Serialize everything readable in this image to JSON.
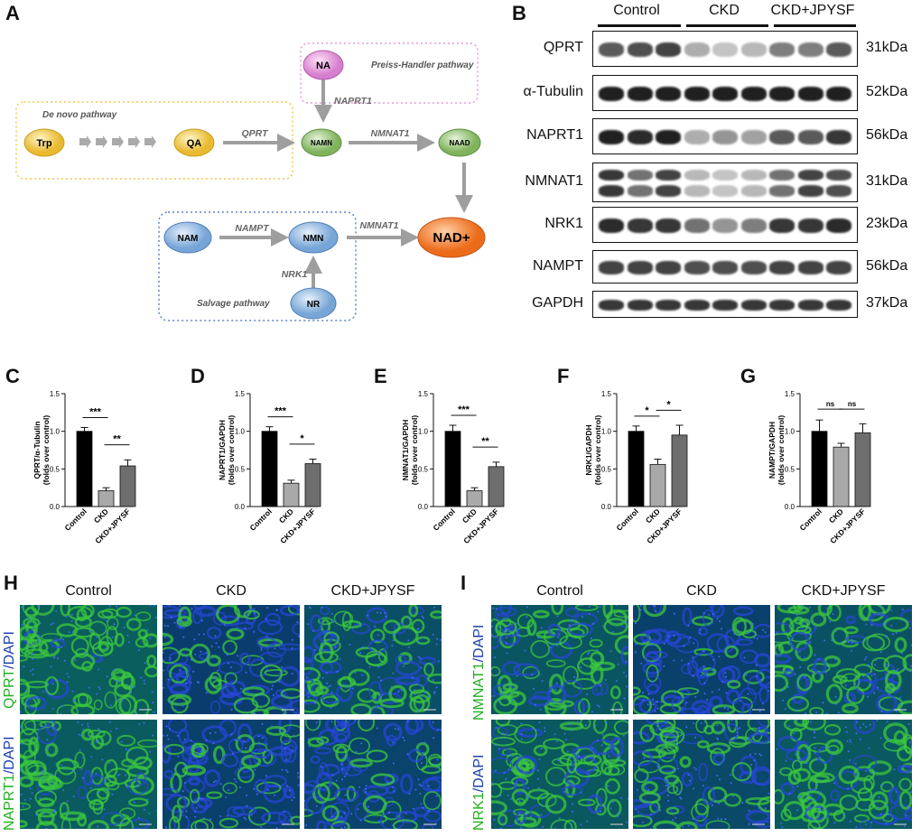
{
  "panels": {
    "A": "A",
    "B": "B",
    "C": "C",
    "D": "D",
    "E": "E",
    "F": "F",
    "G": "G",
    "H": "H",
    "I": "I"
  },
  "pathway": {
    "de_novo": "De novo pathway",
    "preiss": "Preiss-Handler pathway",
    "salvage": "Salvage pathway",
    "nodes": {
      "trp": "Trp",
      "qa": "QA",
      "na": "NA",
      "namn": "NAMN",
      "naad": "NAAD",
      "nam": "NAM",
      "nmn": "NMN",
      "nr": "NR",
      "nad": "NAD+"
    },
    "enzymes": {
      "qprt": "QPRT",
      "naprt1": "NAPRT1",
      "nmnat1_top": "NMNAT1",
      "nampt": "NAMPT",
      "nmnat1_bottom": "NMNAT1",
      "nrk1": "NRK1"
    },
    "colors": {
      "yellow": "#f2c94c",
      "pink": "#e79ad8",
      "green": "#8dbf6e",
      "blue": "#8fb7df",
      "orange": "#f07f2e",
      "arrow": "#9e9e9e"
    }
  },
  "western": {
    "groups": [
      "Control",
      "CKD",
      "CKD+JPYSF"
    ],
    "rows": [
      {
        "protein": "QPRT",
        "kda": "31kDa"
      },
      {
        "protein": "α-Tubulin",
        "kda": "52kDa"
      },
      {
        "protein": "NAPRT1",
        "kda": "56kDa"
      },
      {
        "protein": "NMNAT1",
        "kda": "31kDa"
      },
      {
        "protein": "NRK1",
        "kda": "23kDa"
      },
      {
        "protein": "NAMPT",
        "kda": "56kDa"
      },
      {
        "protein": "GAPDH",
        "kda": "37kDa"
      }
    ]
  },
  "chart_data": [
    {
      "type": "bar",
      "categories": [
        "Control",
        "CKD",
        "CKD+JPYSF"
      ],
      "values": [
        1.0,
        0.21,
        0.54
      ],
      "errors": [
        0.05,
        0.04,
        0.08
      ],
      "ylabel": "QPRT/α-Tubulin",
      "ylabel2": "(folds over control)",
      "ylim": [
        0,
        1.5
      ],
      "yticks": [
        "0.0",
        "0.5",
        "1.0",
        "1.5"
      ],
      "sig": [
        "***",
        "**"
      ]
    },
    {
      "type": "bar",
      "categories": [
        "Control",
        "CKD",
        "CKD+JPYSF"
      ],
      "values": [
        1.0,
        0.31,
        0.57
      ],
      "errors": [
        0.06,
        0.04,
        0.06
      ],
      "ylabel": "NAPRT1/GAPDH",
      "ylabel2": "(folds over control)",
      "ylim": [
        0,
        1.5
      ],
      "yticks": [
        "0.0",
        "0.5",
        "1.0",
        "1.5"
      ],
      "sig": [
        "***",
        "*"
      ]
    },
    {
      "type": "bar",
      "categories": [
        "Control",
        "CKD",
        "CKD+JPYSF"
      ],
      "values": [
        1.0,
        0.21,
        0.53
      ],
      "errors": [
        0.08,
        0.04,
        0.06
      ],
      "ylabel": "NMNAT1/GAPDH",
      "ylabel2": "(folds over control)",
      "ylim": [
        0,
        1.5
      ],
      "yticks": [
        "0.0",
        "0.5",
        "1.0",
        "1.5"
      ],
      "sig": [
        "***",
        "**"
      ]
    },
    {
      "type": "bar",
      "categories": [
        "Control",
        "CKD",
        "CKD+JPYSF"
      ],
      "values": [
        1.0,
        0.56,
        0.95
      ],
      "errors": [
        0.07,
        0.07,
        0.13
      ],
      "ylabel": "NRK1/GAPDH",
      "ylabel2": "(folds over control)",
      "ylim": [
        0,
        1.5
      ],
      "yticks": [
        "0.0",
        "0.5",
        "1.0",
        "1.5"
      ],
      "sig": [
        "*",
        "*"
      ]
    },
    {
      "type": "bar",
      "categories": [
        "Control",
        "CKD",
        "CKD+JPYSF"
      ],
      "values": [
        1.0,
        0.79,
        0.98
      ],
      "errors": [
        0.15,
        0.05,
        0.12
      ],
      "ylabel": "NAMPT/GAPDH",
      "ylabel2": "(folds over control)",
      "ylim": [
        0,
        1.5
      ],
      "yticks": [
        "0.0",
        "0.5",
        "1.0",
        "1.5"
      ],
      "sig": [
        "ns",
        "ns"
      ]
    }
  ],
  "bar_colors": [
    "#000000",
    "#a9a9a9",
    "#6e6e6e"
  ],
  "micro": {
    "cols": [
      "Control",
      "CKD",
      "CKD+JPYSF"
    ],
    "h_rows": [
      {
        "marker": "QPRT",
        "dapi": "/DAPI"
      },
      {
        "marker": "NAPRT1",
        "dapi": "/DAPI"
      }
    ],
    "i_rows": [
      {
        "marker": "NMNAT1",
        "dapi": "/DAPI"
      },
      {
        "marker": "NRK1",
        "dapi": "/DAPI"
      }
    ],
    "colors": {
      "green": "#20b020",
      "blue": "#1a3fb0"
    }
  }
}
